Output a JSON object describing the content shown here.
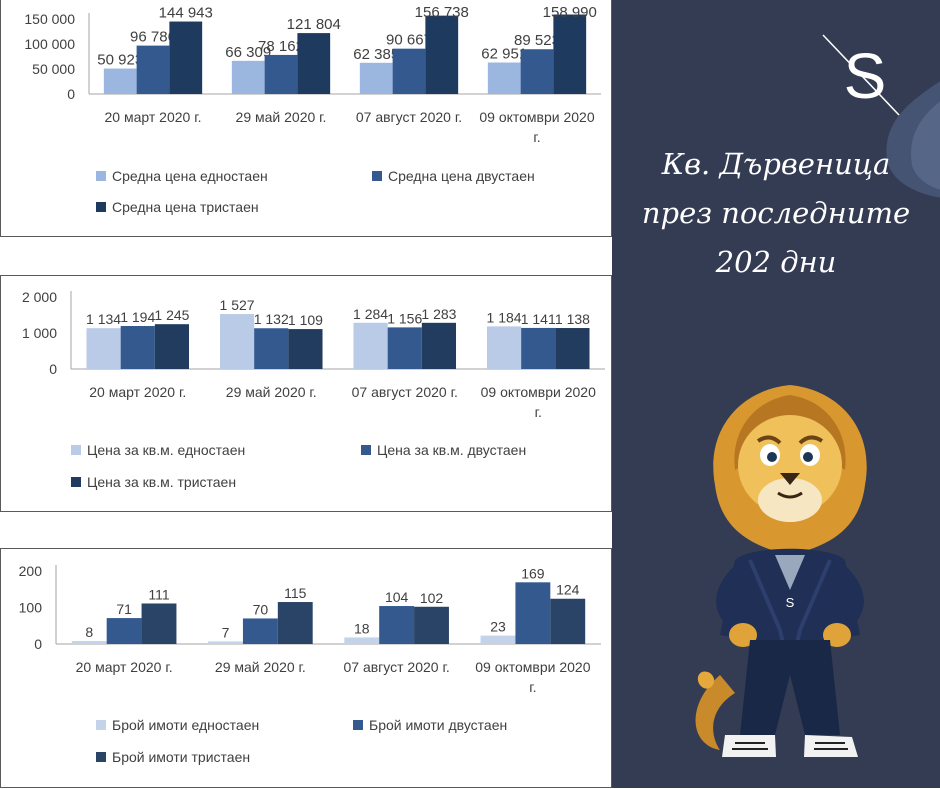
{
  "side": {
    "title": "Кв. Дървеница\nпрез последните\n202 дни",
    "logo_letter": "S",
    "mascot_logo_letter": "S",
    "colors": {
      "background": "#343c54",
      "accent_light": "#aec4e2",
      "accent_mid": "#33598f",
      "accent_dark": "#233e5e"
    }
  },
  "chart_data": [
    {
      "type": "bar",
      "categories": [
        "20 март 2020 г.",
        "29 май 2020 г.",
        "07 август 2020 г.",
        "09 октомври 2020 г."
      ],
      "ylim": [
        0,
        150000
      ],
      "yticks": [
        0,
        50000,
        100000,
        150000
      ],
      "ytick_labels": [
        "0",
        "50 000",
        "100 000",
        "150 000"
      ],
      "grid": false,
      "legend_position": "bottom",
      "series": [
        {
          "name": "Средна цена едностаен",
          "color": "#9bb7e0",
          "values": [
            50923,
            66309,
            62385,
            62951
          ],
          "labels": [
            "50 923",
            "66 309",
            "62 385",
            "62 951"
          ]
        },
        {
          "name": "Средна цена двустаен",
          "color": "#33598f",
          "values": [
            96786,
            78162,
            90667,
            89523
          ],
          "labels": [
            "96 786",
            "78 162",
            "90 667",
            "89 523"
          ]
        },
        {
          "name": "Средна цена тристаен",
          "color": "#1f3a5f",
          "values": [
            144943,
            121804,
            156738,
            158990
          ],
          "labels": [
            "144 943",
            "121 804",
            "156 738",
            "158 990"
          ]
        }
      ]
    },
    {
      "type": "bar",
      "categories": [
        "20 март 2020 г.",
        "29 май 2020 г.",
        "07 август 2020 г.",
        "09 октомври 2020 г."
      ],
      "ylim": [
        0,
        2000
      ],
      "yticks": [
        0,
        1000,
        2000
      ],
      "ytick_labels": [
        "0",
        "1 000",
        "2 000"
      ],
      "grid": false,
      "legend_position": "bottom",
      "series": [
        {
          "name": "Цена за кв.м. едностаен",
          "color": "#b9cbe6",
          "values": [
            1134,
            1527,
            1284,
            1184
          ],
          "labels": [
            "1 134",
            "1 527",
            "1 284",
            "1 184"
          ]
        },
        {
          "name": "Цена за кв.м. двустаен",
          "color": "#33598f",
          "values": [
            1194,
            1132,
            1156,
            1141
          ],
          "labels": [
            "1 194",
            "1 132",
            "1 156",
            "1 141"
          ]
        },
        {
          "name": "Цена за кв.м. тристаен",
          "color": "#213c5e",
          "values": [
            1245,
            1109,
            1283,
            1138
          ],
          "labels": [
            "1 245",
            "1 109",
            "1 283",
            "1 138"
          ]
        }
      ]
    },
    {
      "type": "bar",
      "categories": [
        "20 март 2020 г.",
        "29 май 2020 г.",
        "07 август 2020 г.",
        "09 октомври 2020 г."
      ],
      "ylim": [
        0,
        200
      ],
      "yticks": [
        0,
        100,
        200
      ],
      "ytick_labels": [
        "0",
        "100",
        "200"
      ],
      "grid": false,
      "legend_position": "bottom",
      "series": [
        {
          "name": "Брой имоти едностаен",
          "color": "#c3d3ea",
          "values": [
            8,
            7,
            18,
            23
          ],
          "labels": [
            "8",
            "7",
            "18",
            "23"
          ]
        },
        {
          "name": "Брой имоти двустаен",
          "color": "#33598f",
          "values": [
            71,
            70,
            104,
            169
          ],
          "labels": [
            "71",
            "70",
            "104",
            "169"
          ]
        },
        {
          "name": "Брой имоти тристаен",
          "color": "#2a4468",
          "values": [
            111,
            115,
            102,
            124
          ],
          "labels": [
            "111",
            "115",
            "102",
            "124"
          ]
        }
      ]
    }
  ]
}
